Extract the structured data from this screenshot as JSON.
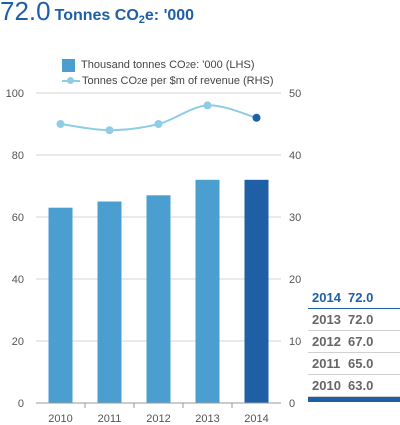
{
  "headline": {
    "value": "72.0",
    "unit_prefix": "Tonnes CO",
    "unit_sub": "2",
    "unit_suffix": "e: '000"
  },
  "legend": {
    "bar_prefix": "Thousand tonnes CO",
    "bar_sub": "2",
    "bar_suffix": "e: '000 (LHS)",
    "line_prefix": "Tonnes CO",
    "line_sub": "2",
    "line_suffix": "e per $m of revenue (RHS)"
  },
  "table": [
    {
      "year": "2014",
      "value": "72.0",
      "highlight": true
    },
    {
      "year": "2013",
      "value": "72.0",
      "highlight": false
    },
    {
      "year": "2012",
      "value": "67.0",
      "highlight": false
    },
    {
      "year": "2011",
      "value": "65.0",
      "highlight": false
    },
    {
      "year": "2010",
      "value": "63.0",
      "highlight": false
    }
  ],
  "colors": {
    "bar": "#4a9fd0",
    "bar_highlight": "#1f5fa6",
    "line": "#8fcde6",
    "point_highlight": "#1f5fa6",
    "headline": "#1f5fa6"
  },
  "chart_data": {
    "type": "bar",
    "categories": [
      "2010",
      "2011",
      "2012",
      "2013",
      "2014"
    ],
    "series": [
      {
        "name": "Thousand tonnes CO2e: '000 (LHS)",
        "type": "bar",
        "axis": "left",
        "values": [
          63,
          65,
          67,
          72,
          72
        ]
      },
      {
        "name": "Tonnes CO2e per $m of revenue (RHS)",
        "type": "line",
        "axis": "right",
        "values": [
          45,
          44,
          45,
          48,
          46
        ]
      }
    ],
    "ylim_left": [
      0,
      100
    ],
    "yticks_left": [
      0,
      20,
      40,
      60,
      80,
      100
    ],
    "ylim_right": [
      0,
      50
    ],
    "yticks_right": [
      0,
      10,
      20,
      30,
      40,
      50
    ],
    "highlight_category": "2014",
    "grid": true,
    "legend_position": "top-left"
  }
}
